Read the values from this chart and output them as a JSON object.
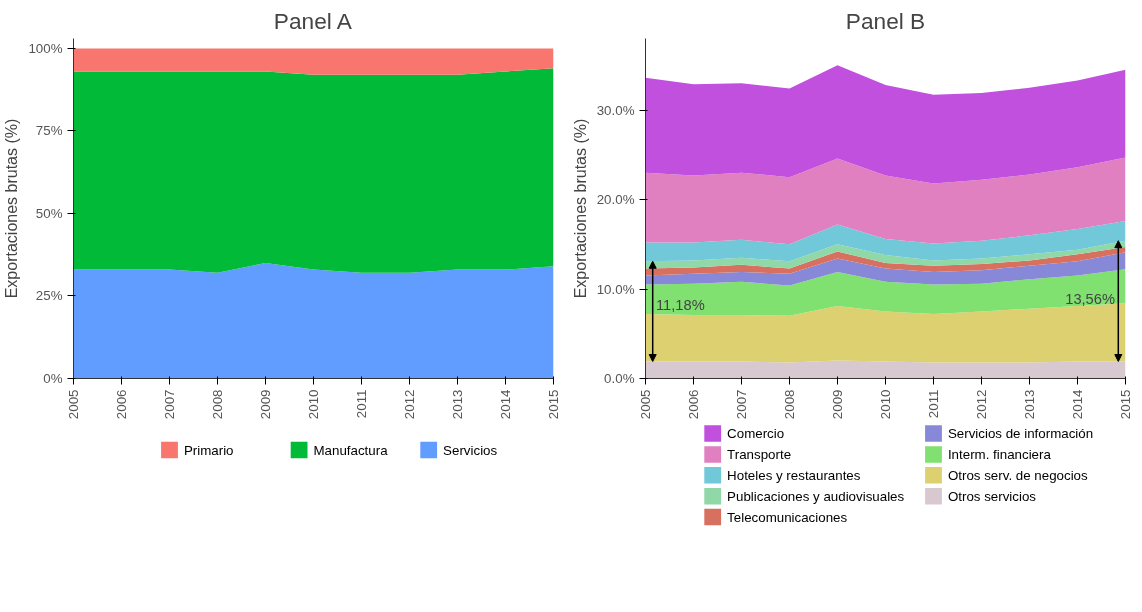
{
  "chart_data": [
    {
      "type": "area",
      "title": "Panel A",
      "ylabel": "Exportaciones brutas (%)",
      "stacked": true,
      "x": [
        2005,
        2006,
        2007,
        2008,
        2009,
        2010,
        2011,
        2012,
        2013,
        2014,
        2015
      ],
      "xlim": [
        2005,
        2015
      ],
      "xticks": [
        2005,
        2006,
        2007,
        2008,
        2009,
        2010,
        2011,
        2012,
        2013,
        2014,
        2015
      ],
      "ylim": [
        0,
        103
      ],
      "yticks": [
        {
          "value": 0,
          "label": "0%"
        },
        {
          "value": 25,
          "label": "25%"
        },
        {
          "value": 50,
          "label": "50%"
        },
        {
          "value": 75,
          "label": "75%"
        },
        {
          "value": 100,
          "label": "100%"
        }
      ],
      "grid": false,
      "legend": "bottom",
      "series": [
        {
          "name": "Servicios",
          "color": "#619cff",
          "values": [
            33,
            33,
            33,
            32,
            35,
            33,
            32,
            32,
            33,
            33,
            34
          ]
        },
        {
          "name": "Manufactura",
          "color": "#00ba38",
          "values": [
            60,
            60,
            60,
            61,
            58,
            59,
            60,
            60,
            59,
            60,
            60
          ]
        },
        {
          "name": "Primario",
          "color": "#f8766d",
          "values": [
            7,
            7,
            7,
            7,
            7,
            8,
            8,
            8,
            8,
            7,
            6
          ]
        }
      ]
    },
    {
      "type": "area",
      "title": "Panel B",
      "ylabel": "Exportaciones brutas (%)",
      "stacked": true,
      "x": [
        2005,
        2006,
        2007,
        2008,
        2009,
        2010,
        2011,
        2012,
        2013,
        2014,
        2015
      ],
      "xlim": [
        2005,
        2015
      ],
      "xticks": [
        2005,
        2006,
        2007,
        2008,
        2009,
        2010,
        2011,
        2012,
        2013,
        2014,
        2015
      ],
      "ylim": [
        0,
        38
      ],
      "yticks": [
        {
          "value": 0,
          "label": "0.0%"
        },
        {
          "value": 10,
          "label": "10.0%"
        },
        {
          "value": 20,
          "label": "20.0%"
        },
        {
          "value": 30,
          "label": "30.0%"
        }
      ],
      "grid": false,
      "legend": "bottom",
      "annotations": [
        {
          "text": "11,18%",
          "x": 2005,
          "y": 8.2
        },
        {
          "text": "13,56%",
          "x": 2015,
          "y": 8.9
        }
      ],
      "series": [
        {
          "name": "Otros servicios",
          "color": "#d8c8d0",
          "values": [
            1.9,
            1.9,
            1.9,
            1.8,
            2.0,
            1.9,
            1.8,
            1.8,
            1.8,
            1.9,
            1.9
          ]
        },
        {
          "name": "Otros serv. de negocios",
          "color": "#ddd070",
          "values": [
            5.3,
            5.2,
            5.2,
            5.2,
            6.1,
            5.6,
            5.4,
            5.7,
            6.0,
            6.2,
            6.5
          ]
        },
        {
          "name": "Interm. financiera",
          "color": "#80e070",
          "values": [
            3.3,
            3.5,
            3.7,
            3.4,
            3.8,
            3.3,
            3.3,
            3.1,
            3.3,
            3.4,
            3.8
          ]
        },
        {
          "name": "Servicios de información",
          "color": "#8888d8",
          "values": [
            1.0,
            1.1,
            1.1,
            1.3,
            1.5,
            1.5,
            1.4,
            1.5,
            1.5,
            1.6,
            1.9
          ]
        },
        {
          "name": "Telecomunicaciones",
          "color": "#d87060",
          "values": [
            0.8,
            0.7,
            0.8,
            0.6,
            0.8,
            0.6,
            0.7,
            0.7,
            0.6,
            0.8,
            0.6
          ]
        },
        {
          "name": "Publicaciones y audiovisuales",
          "color": "#90d8a8",
          "values": [
            0.8,
            0.8,
            0.8,
            0.8,
            0.8,
            0.9,
            0.6,
            0.6,
            0.7,
            0.5,
            0.7
          ]
        },
        {
          "name": "Hoteles y restaurantes",
          "color": "#70c8d8",
          "values": [
            2.1,
            2.0,
            2.0,
            1.9,
            2.2,
            1.8,
            1.9,
            2.0,
            2.1,
            2.3,
            2.2
          ]
        },
        {
          "name": "Transporte",
          "color": "#e080c0",
          "values": [
            7.8,
            7.5,
            7.5,
            7.5,
            7.4,
            7.1,
            6.7,
            6.8,
            6.8,
            6.9,
            7.1
          ]
        },
        {
          "name": "Comercio",
          "color": "#c050dd",
          "values": [
            10.6,
            10.2,
            10.0,
            9.9,
            10.4,
            10.1,
            9.9,
            9.7,
            9.7,
            9.7,
            9.8
          ]
        }
      ]
    }
  ]
}
